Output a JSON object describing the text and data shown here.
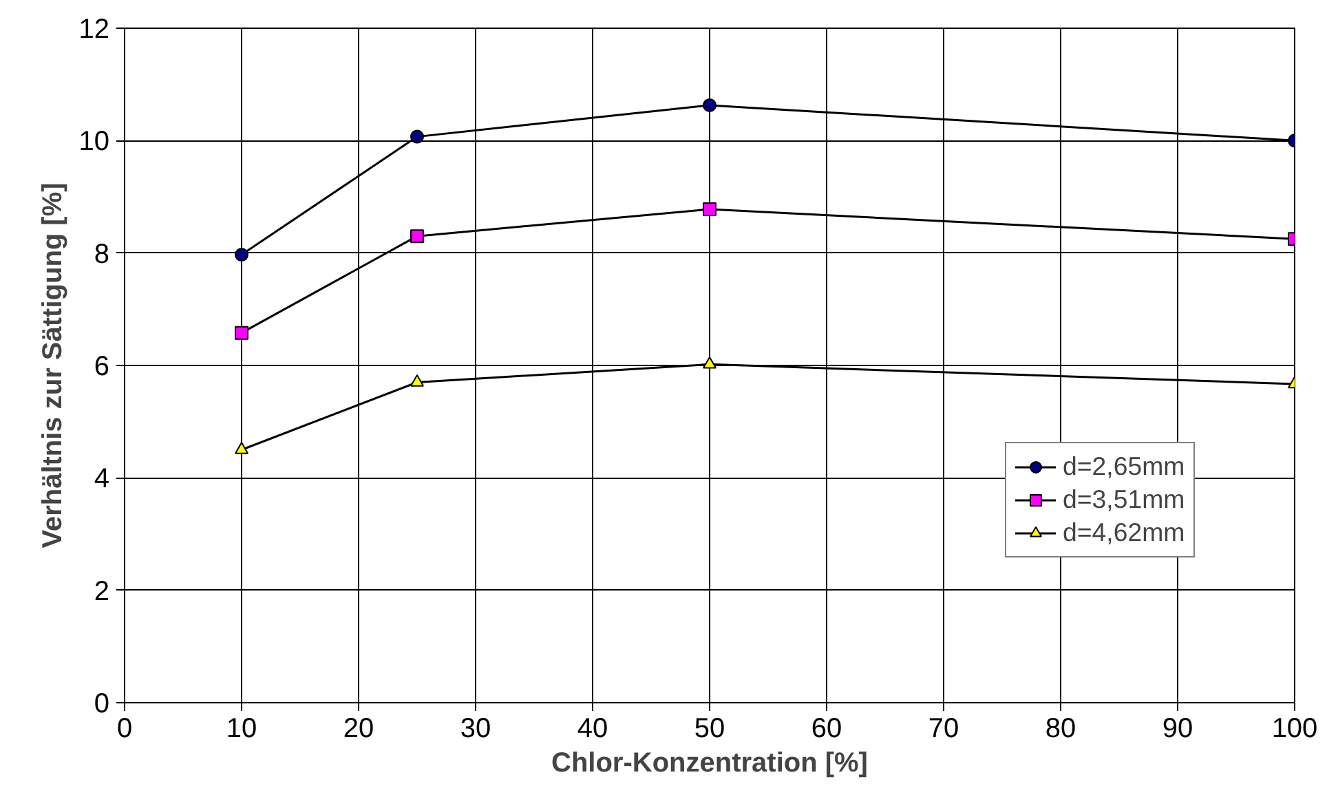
{
  "chart_data": {
    "type": "line",
    "xlabel": "Chlor-Konzentration [%]",
    "ylabel": "Verhältnis zur Sättigung [%]",
    "x": [
      10,
      25,
      50,
      100
    ],
    "series": [
      {
        "name": "d=2,65mm",
        "color": "#000080",
        "marker": "circle",
        "values": [
          7.97,
          10.07,
          10.63,
          10.0
        ]
      },
      {
        "name": "d=3,51mm",
        "color": "#ff00ff",
        "marker": "square",
        "values": [
          6.58,
          8.3,
          8.78,
          8.25
        ]
      },
      {
        "name": "d=4,62mm",
        "color": "#ffff00",
        "marker": "triangle",
        "values": [
          4.5,
          5.7,
          6.02,
          5.67
        ]
      }
    ],
    "xlim": [
      0,
      100
    ],
    "xticks": [
      0,
      10,
      20,
      30,
      40,
      50,
      60,
      70,
      80,
      90,
      100
    ],
    "ylim": [
      0,
      12
    ],
    "yticks": [
      0,
      2,
      4,
      6,
      8,
      10,
      12
    ],
    "grid": true,
    "legend": "bottom right",
    "line_style": "solid"
  }
}
